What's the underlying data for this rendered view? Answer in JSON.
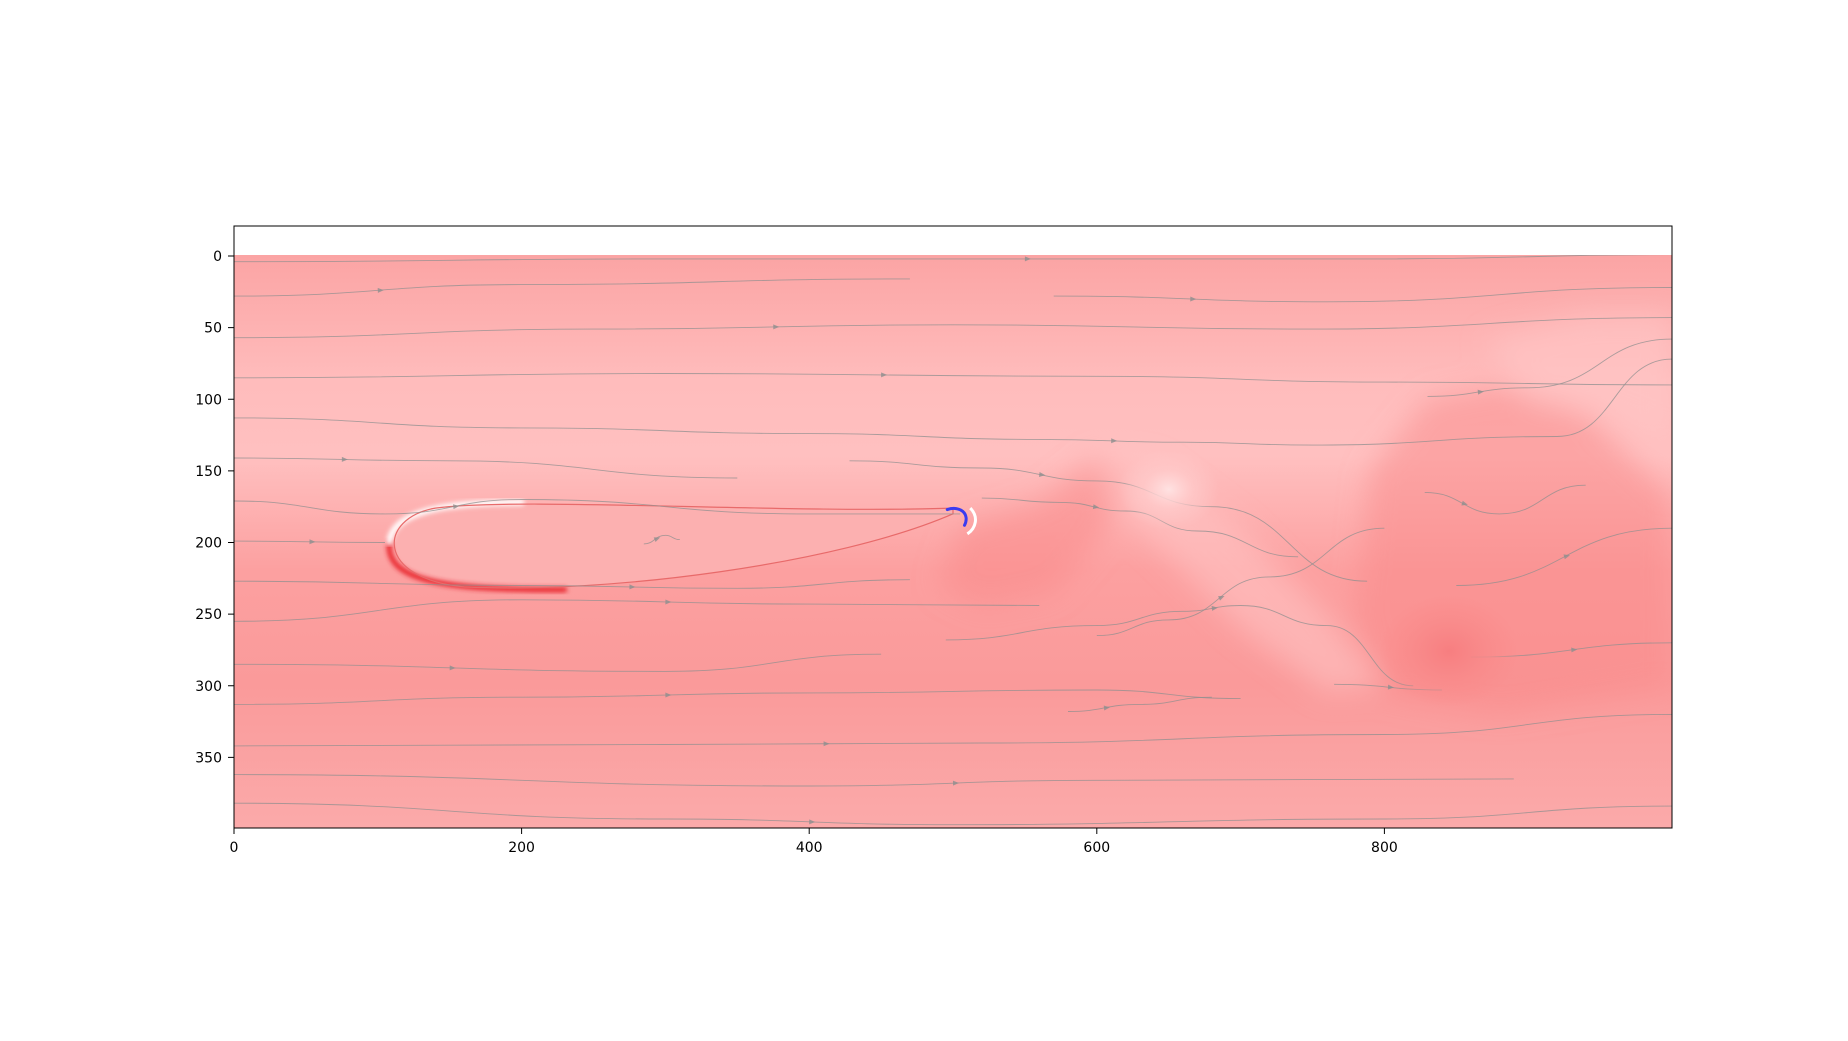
{
  "chart_data": {
    "type": "heatmap",
    "title": "",
    "xlabel": "",
    "ylabel": "",
    "xlim": [
      0,
      1000
    ],
    "ylim": [
      400,
      0
    ],
    "y_axis_inverted": true,
    "grid": false,
    "legend": "none",
    "overlay": "streamlines",
    "colormap": "bwr (blue-white-red), field mostly positive",
    "x_ticks": [
      {
        "value": 0,
        "label": "0"
      },
      {
        "value": 200,
        "label": "200"
      },
      {
        "value": 400,
        "label": "400"
      },
      {
        "value": 600,
        "label": "600"
      },
      {
        "value": 800,
        "label": "800"
      }
    ],
    "y_ticks": [
      {
        "value": 0,
        "label": "0"
      },
      {
        "value": 50,
        "label": "50"
      },
      {
        "value": 100,
        "label": "100"
      },
      {
        "value": 150,
        "label": "150"
      },
      {
        "value": 200,
        "label": "200"
      },
      {
        "value": 250,
        "label": "250"
      },
      {
        "value": 300,
        "label": "300"
      },
      {
        "value": 350,
        "label": "350"
      }
    ],
    "colors": {
      "base_field": "#fba8a8",
      "light_field": "#ffc6c6",
      "dark_field": "#f98a8a",
      "negative": "#3b3bf0",
      "positive_strong": "#e8202a",
      "streamline": "#8f8f8f"
    },
    "features": [
      {
        "name": "body",
        "x_range": [
          105,
          510
        ],
        "y_range": [
          170,
          234
        ]
      },
      {
        "name": "wake-vortex",
        "x": 650,
        "y": 163
      },
      {
        "name": "wake-vortex",
        "x": 845,
        "y": 276
      }
    ],
    "streamlines": [
      {
        "points": [
          [
            0,
            4
          ],
          [
            300,
            2
          ],
          [
            800,
            2
          ],
          [
            1000,
            -1
          ]
        ]
      },
      {
        "points": [
          [
            0,
            28
          ],
          [
            200,
            20
          ],
          [
            470,
            16
          ]
        ]
      },
      {
        "points": [
          [
            570,
            28
          ],
          [
            760,
            32
          ],
          [
            1000,
            22
          ]
        ]
      },
      {
        "points": [
          [
            0,
            57
          ],
          [
            250,
            51
          ],
          [
            500,
            48
          ],
          [
            750,
            51
          ],
          [
            1000,
            43
          ]
        ]
      },
      {
        "points": [
          [
            0,
            85
          ],
          [
            300,
            82
          ],
          [
            600,
            84
          ],
          [
            800,
            88
          ],
          [
            1000,
            90
          ]
        ]
      },
      {
        "points": [
          [
            830,
            98
          ],
          [
            900,
            92
          ],
          [
            1000,
            58
          ]
        ]
      },
      {
        "points": [
          [
            0,
            113
          ],
          [
            200,
            120
          ],
          [
            400,
            124
          ],
          [
            560,
            128
          ],
          [
            660,
            130
          ],
          [
            750,
            132
          ],
          [
            920,
            126
          ],
          [
            1000,
            72
          ]
        ]
      },
      {
        "points": [
          [
            0,
            141
          ],
          [
            150,
            143
          ],
          [
            350,
            155
          ]
        ]
      },
      {
        "points": [
          [
            428,
            143
          ],
          [
            520,
            148
          ],
          [
            600,
            157
          ],
          [
            680,
            175
          ],
          [
            788,
            227
          ]
        ]
      },
      {
        "points": [
          [
            0,
            171
          ],
          [
            105,
            180
          ],
          [
            200,
            170
          ],
          [
            400,
            180
          ],
          [
            505,
            180
          ]
        ]
      },
      {
        "points": [
          [
            0,
            199
          ],
          [
            105,
            200
          ]
        ]
      },
      {
        "points": [
          [
            0,
            227
          ],
          [
            200,
            230
          ],
          [
            350,
            232
          ],
          [
            470,
            226
          ]
        ]
      },
      {
        "points": [
          [
            285,
            201
          ],
          [
            300,
            195
          ],
          [
            310,
            198
          ]
        ]
      },
      {
        "points": [
          [
            520,
            169
          ],
          [
            575,
            172
          ],
          [
            620,
            178
          ],
          [
            670,
            192
          ],
          [
            740,
            210
          ]
        ]
      },
      {
        "points": [
          [
            0,
            255
          ],
          [
            200,
            240
          ],
          [
            400,
            243
          ],
          [
            560,
            244
          ]
        ]
      },
      {
        "points": [
          [
            600,
            265
          ],
          [
            650,
            254
          ],
          [
            720,
            224
          ],
          [
            800,
            190
          ]
        ]
      },
      {
        "points": [
          [
            828,
            165
          ],
          [
            880,
            180
          ],
          [
            940,
            160
          ]
        ]
      },
      {
        "points": [
          [
            850,
            230
          ],
          [
            1000,
            190
          ]
        ]
      },
      {
        "points": [
          [
            0,
            285
          ],
          [
            300,
            290
          ],
          [
            450,
            278
          ]
        ]
      },
      {
        "points": [
          [
            495,
            268
          ],
          [
            600,
            258
          ],
          [
            660,
            248
          ],
          [
            700,
            244
          ],
          [
            760,
            258
          ],
          [
            820,
            300
          ]
        ]
      },
      {
        "points": [
          [
            0,
            313
          ],
          [
            200,
            308
          ],
          [
            400,
            305
          ],
          [
            600,
            303
          ],
          [
            700,
            309
          ]
        ]
      },
      {
        "points": [
          [
            765,
            299
          ],
          [
            840,
            303
          ]
        ]
      },
      {
        "points": [
          [
            580,
            318
          ],
          [
            630,
            313
          ],
          [
            680,
            308
          ]
        ]
      },
      {
        "points": [
          [
            0,
            342
          ],
          [
            300,
            341
          ],
          [
            520,
            340
          ],
          [
            800,
            334
          ],
          [
            1000,
            320
          ]
        ]
      },
      {
        "points": [
          [
            0,
            362
          ],
          [
            400,
            370
          ],
          [
            600,
            366
          ],
          [
            890,
            365
          ]
        ]
      },
      {
        "points": [
          [
            0,
            382
          ],
          [
            300,
            393
          ],
          [
            500,
            397
          ],
          [
            800,
            393
          ],
          [
            1000,
            384
          ]
        ]
      },
      {
        "points": [
          [
            860,
            280
          ],
          [
            1000,
            270
          ]
        ]
      }
    ]
  }
}
